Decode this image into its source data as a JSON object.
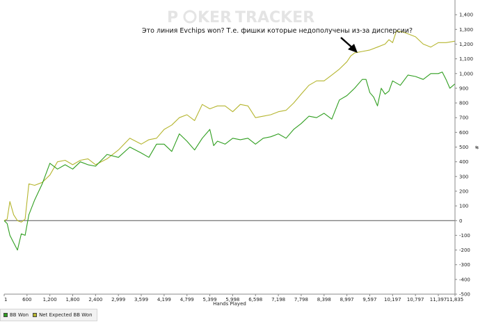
{
  "watermark": {
    "part1": "P",
    "part2": "KER",
    "part3": "TRACKER"
  },
  "annotation": "Это линия Evchips won? Т.е. фишки которые недополучены из-за дисперсии?",
  "legend": {
    "series1": "BB Won",
    "series2": "Net Expected BB Won"
  },
  "colors": {
    "bb_won": "#2f9e1f",
    "expected": "#b5b52e",
    "zero_line": "#555555",
    "arrow": "#000000"
  },
  "chart_data": {
    "type": "line",
    "xlabel": "Hands Played",
    "ylabel": "#",
    "xlim": [
      1,
      11835
    ],
    "ylim": [
      -500,
      1500
    ],
    "x_ticks": [
      "1",
      "600",
      "1,200",
      "1,800",
      "2,400",
      "2,999",
      "3,599",
      "4,199",
      "4,799",
      "5,399",
      "5,998",
      "6,598",
      "7,198",
      "7,798",
      "8,398",
      "8,997",
      "9,597",
      "10,197",
      "10,797",
      "11,397",
      "11,835"
    ],
    "y_ticks": [
      "1,400",
      "1,300",
      "1,200",
      "1,100",
      "1,000",
      "900",
      "800",
      "700",
      "600",
      "500",
      "400",
      "300",
      "200",
      "100",
      "0",
      "-100",
      "-200",
      "-300",
      "-400",
      "-500"
    ],
    "series": [
      {
        "name": "BB Won",
        "x": [
          1,
          80,
          150,
          250,
          350,
          450,
          550,
          650,
          800,
          1000,
          1200,
          1400,
          1600,
          1800,
          2000,
          2200,
          2400,
          2700,
          3000,
          3300,
          3599,
          3800,
          4000,
          4199,
          4400,
          4600,
          4799,
          5000,
          5200,
          5399,
          5500,
          5600,
          5800,
          6000,
          6200,
          6400,
          6598,
          6800,
          7000,
          7198,
          7400,
          7600,
          7798,
          8000,
          8200,
          8398,
          8600,
          8800,
          8997,
          9200,
          9400,
          9500,
          9600,
          9700,
          9800,
          9900,
          10000,
          10100,
          10197,
          10400,
          10600,
          10797,
          11000,
          11200,
          11397,
          11500,
          11600,
          11700,
          11835
        ],
        "values": [
          0,
          -20,
          -100,
          -150,
          -200,
          -90,
          -100,
          40,
          140,
          250,
          390,
          350,
          380,
          350,
          400,
          380,
          370,
          450,
          430,
          500,
          460,
          430,
          520,
          520,
          470,
          590,
          540,
          480,
          560,
          620,
          510,
          540,
          520,
          560,
          550,
          560,
          520,
          560,
          570,
          590,
          560,
          620,
          660,
          710,
          700,
          730,
          690,
          820,
          850,
          900,
          960,
          960,
          870,
          840,
          780,
          900,
          860,
          880,
          950,
          920,
          990,
          980,
          960,
          1000,
          1000,
          1010,
          960,
          900,
          930
        ]
      },
      {
        "name": "Net Expected BB Won",
        "x": [
          1,
          80,
          150,
          250,
          350,
          450,
          550,
          650,
          800,
          1000,
          1200,
          1400,
          1600,
          1800,
          2000,
          2200,
          2400,
          2700,
          3000,
          3300,
          3599,
          3800,
          4000,
          4199,
          4400,
          4600,
          4799,
          5000,
          5200,
          5399,
          5500,
          5600,
          5800,
          6000,
          6200,
          6400,
          6598,
          6800,
          7000,
          7198,
          7400,
          7600,
          7798,
          8000,
          8200,
          8398,
          8600,
          8800,
          8997,
          9100,
          9200,
          9400,
          9600,
          9800,
          10000,
          10100,
          10197,
          10300,
          10500,
          10797,
          11000,
          11200,
          11397,
          11600,
          11835
        ],
        "values": [
          0,
          10,
          130,
          40,
          0,
          -10,
          10,
          250,
          240,
          260,
          310,
          400,
          410,
          380,
          410,
          420,
          380,
          420,
          480,
          560,
          520,
          550,
          560,
          620,
          650,
          700,
          720,
          680,
          790,
          760,
          770,
          780,
          780,
          740,
          790,
          780,
          700,
          710,
          720,
          740,
          750,
          800,
          860,
          920,
          950,
          950,
          990,
          1030,
          1080,
          1120,
          1140,
          1150,
          1160,
          1180,
          1200,
          1230,
          1210,
          1290,
          1280,
          1250,
          1200,
          1180,
          1210,
          1210,
          1220
        ]
      }
    ]
  }
}
